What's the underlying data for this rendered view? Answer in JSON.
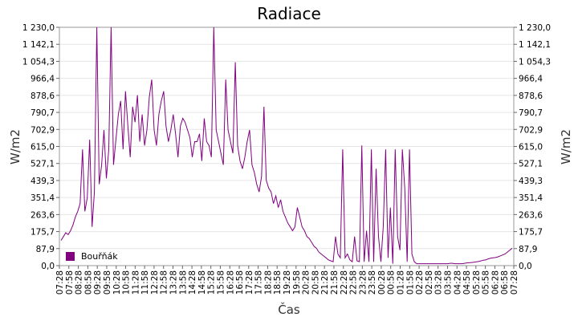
{
  "chart_data": {
    "type": "line",
    "title": "Radiace",
    "xlabel": "Čas",
    "ylabel": "W/m2",
    "ylabel_right": "W/m2",
    "ylim": [
      0,
      1230
    ],
    "y_ticks": [
      "0,0",
      "87,9",
      "175,7",
      "263,6",
      "351,4",
      "439,3",
      "527,1",
      "615,0",
      "702,9",
      "790,7",
      "878,6",
      "966,4",
      "1 054,3",
      "1 142,1",
      "1 230,0"
    ],
    "x_ticks": [
      "07:28",
      "07:58",
      "08:28",
      "08:58",
      "09:28",
      "09:58",
      "10:28",
      "10:58",
      "11:28",
      "11:58",
      "12:28",
      "12:58",
      "13:28",
      "13:58",
      "14:28",
      "14:58",
      "15:28",
      "15:58",
      "16:28",
      "16:58",
      "17:28",
      "17:58",
      "18:28",
      "18:58",
      "19:28",
      "19:58",
      "20:28",
      "20:58",
      "21:28",
      "21:58",
      "22:28",
      "22:58",
      "23:28",
      "23:58",
      "00:28",
      "00:58",
      "01:28",
      "01:58",
      "02:28",
      "02:58",
      "03:28",
      "03:58",
      "04:28",
      "04:58",
      "05:28",
      "05:58",
      "06:28",
      "06:58",
      "07:28"
    ],
    "grid": true,
    "legend_position": "bottom-left",
    "series": [
      {
        "name": "Bouřňák",
        "color": "#800080",
        "values": [
          130,
          150,
          170,
          160,
          180,
          210,
          250,
          280,
          320,
          600,
          280,
          350,
          650,
          200,
          380,
          1230,
          420,
          520,
          700,
          450,
          600,
          1230,
          520,
          650,
          780,
          850,
          600,
          900,
          720,
          560,
          820,
          740,
          880,
          640,
          780,
          620,
          700,
          870,
          960,
          700,
          620,
          780,
          850,
          900,
          720,
          640,
          700,
          780,
          680,
          560,
          720,
          760,
          740,
          700,
          660,
          560,
          640,
          640,
          680,
          540,
          760,
          640,
          620,
          560,
          1230,
          700,
          640,
          580,
          520,
          960,
          700,
          640,
          580,
          1050,
          620,
          540,
          500,
          560,
          640,
          700,
          520,
          480,
          420,
          380,
          460,
          820,
          440,
          400,
          380,
          320,
          360,
          300,
          340,
          280,
          250,
          220,
          200,
          180,
          200,
          300,
          250,
          200,
          180,
          150,
          140,
          120,
          100,
          90,
          70,
          60,
          50,
          40,
          30,
          25,
          20,
          150,
          60,
          40,
          600,
          40,
          60,
          30,
          20,
          150,
          25,
          20,
          620,
          20,
          180,
          20,
          600,
          20,
          500,
          150,
          20,
          200,
          600,
          40,
          300,
          10,
          600,
          150,
          80,
          600,
          400,
          20,
          600,
          60,
          20,
          10,
          10,
          10,
          10,
          10,
          10,
          10,
          10,
          10,
          10,
          10,
          10,
          10,
          10,
          12,
          12,
          10,
          10,
          10,
          10,
          12,
          14,
          15,
          16,
          18,
          20,
          22,
          25,
          28,
          30,
          35,
          38,
          40,
          42,
          45,
          50,
          55,
          60,
          70,
          80,
          90
        ]
      }
    ]
  }
}
